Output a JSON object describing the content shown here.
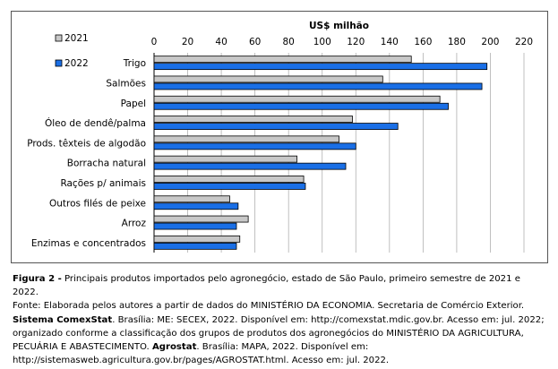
{
  "chart_data": {
    "type": "bar",
    "orientation": "horizontal",
    "unit_label": "US$ milhão",
    "categories": [
      "Trigo",
      "Salmões",
      "Papel",
      "Óleo de dendê/palma",
      "Prods. têxteis de algodão",
      "Borracha natural",
      "Rações p/ animais",
      "Outros filés de peixe",
      "Arroz",
      "Enzimas e concentrados"
    ],
    "series": [
      {
        "name": "2021",
        "color": "#c8c8c8",
        "values": [
          153,
          136,
          170,
          118,
          110,
          85,
          89,
          45,
          56,
          51
        ]
      },
      {
        "name": "2022",
        "color": "#1a6fe6",
        "values": [
          198,
          195,
          175,
          145,
          120,
          114,
          90,
          50,
          49,
          49
        ]
      }
    ],
    "x_ticks": [
      "0",
      "20",
      "40",
      "60",
      "80",
      "100",
      "120",
      "140",
      "160",
      "180",
      "200",
      "220"
    ],
    "xlim": [
      0,
      220
    ],
    "grid": true,
    "legend_position": "top-left"
  },
  "caption": {
    "figure_label": "Figura 2 -",
    "figure_title": " Principais produtos importados pelo agronegócio, estado de São Paulo, primeiro semestre de 2021 e 2022.",
    "source_intro": "Fonte: Elaborada pelos autores a partir de dados do MINISTÉRIO DA ECONOMIA. Secretaria de Comércio Exterior. ",
    "source_bold_1": "Sistema ComexStat",
    "source_mid": ". Brasília: ME: SECEX, 2022. Disponível em: http://comexstat.mdic.gov.br. Acesso em: jul. 2022; organizado conforme a classificação dos grupos de produtos dos agronegócios do MINISTÉRIO DA AGRICULTURA, PECUÁRIA E ABASTECIMENTO. ",
    "source_bold_2": "Agrostat",
    "source_end": ". Brasília: MAPA, 2022. Disponível em: http://sistemasweb.agricultura.gov.br/pages/AGROSTAT.html. Acesso em: jul. 2022."
  }
}
